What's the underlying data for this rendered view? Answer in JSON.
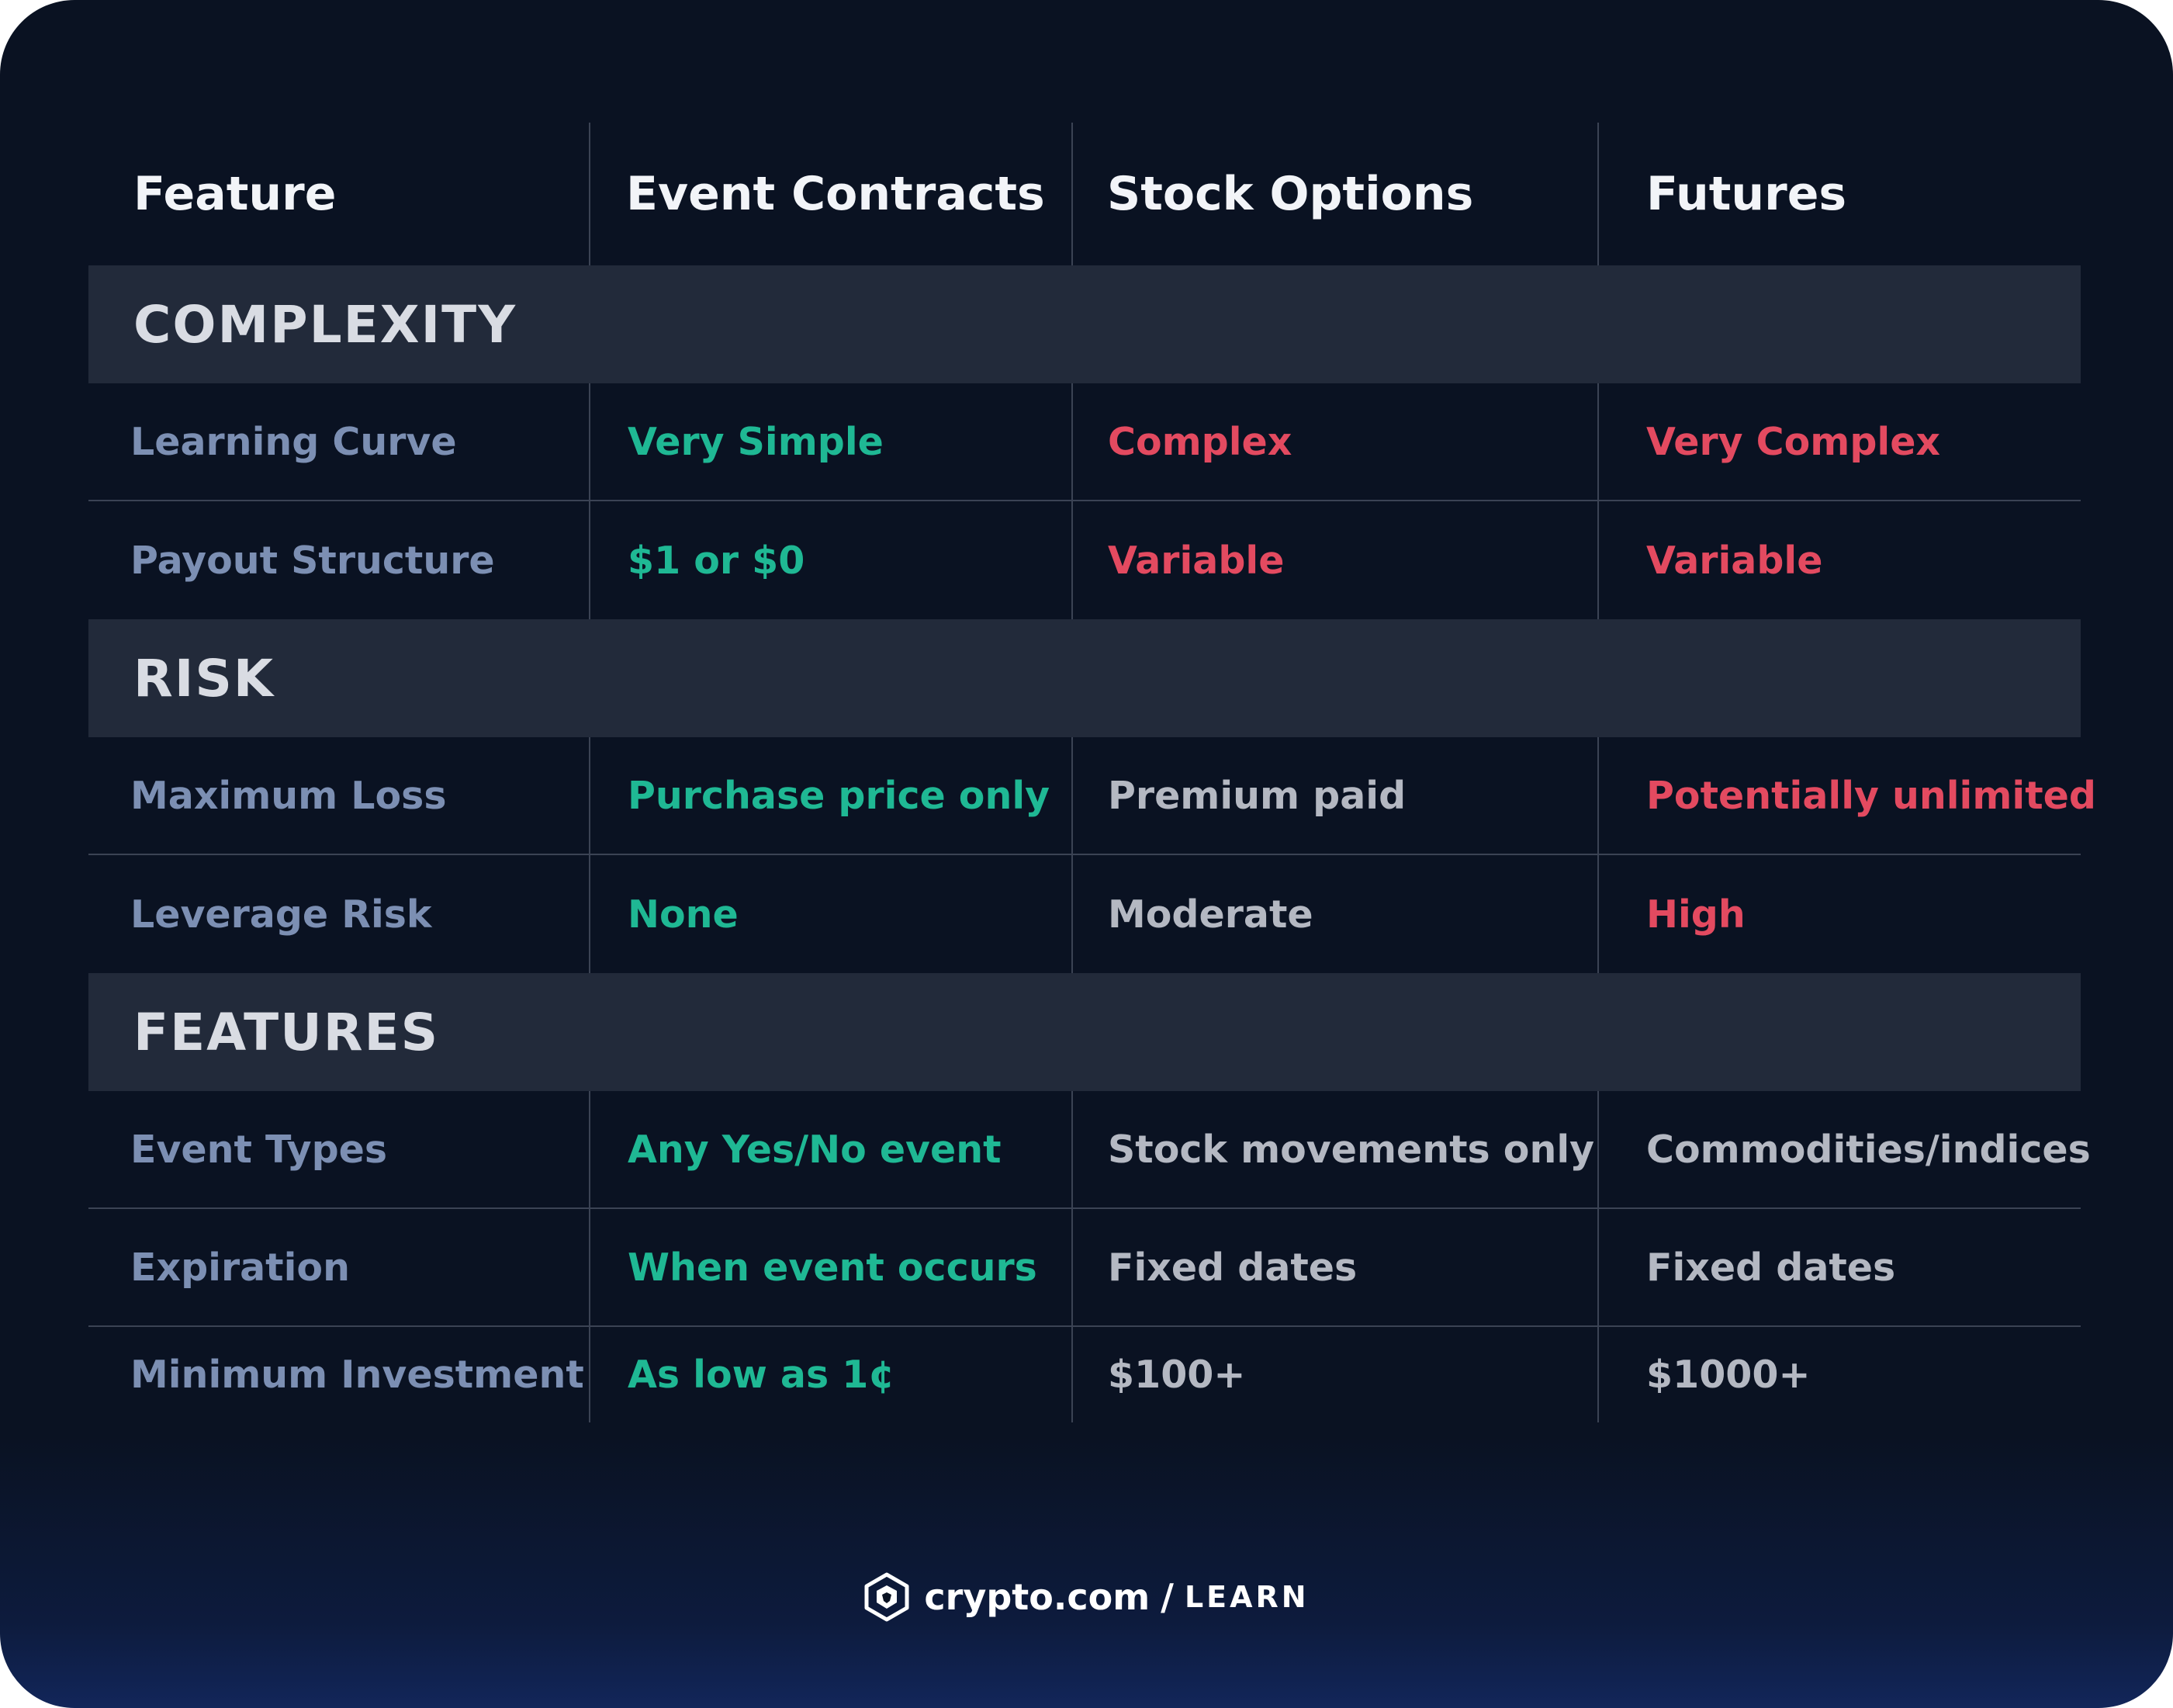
{
  "header": {
    "columns": [
      "Feature",
      "Event Contracts",
      "Stock Options",
      "Futures"
    ]
  },
  "sections": [
    {
      "title": "COMPLEXITY",
      "rows": [
        {
          "feature": "Learning Curve",
          "event_contracts": "Very Simple",
          "stock_options": "Complex",
          "futures": "Very Complex"
        },
        {
          "feature": "Payout Structure",
          "event_contracts": "$1 or $0",
          "stock_options": "Variable",
          "futures": "Variable"
        }
      ]
    },
    {
      "title": "RISK",
      "rows": [
        {
          "feature": "Maximum Loss",
          "event_contracts": "Purchase price only",
          "stock_options": "Premium paid",
          "futures": "Potentially unlimited"
        },
        {
          "feature": "Leverage Risk",
          "event_contracts": "None",
          "stock_options": "Moderate",
          "futures": "High"
        }
      ]
    },
    {
      "title": "FEATURES",
      "rows": [
        {
          "feature": "Event Types",
          "event_contracts": "Any Yes/No event",
          "stock_options": "Stock movements only",
          "futures": "Commodities/indices"
        },
        {
          "feature": "Expiration",
          "event_contracts": "When event occurs",
          "stock_options": "Fixed dates",
          "futures": "Fixed dates"
        },
        {
          "feature": "Minimum Investment",
          "event_contracts": "As low as 1¢",
          "stock_options": "$100+",
          "futures": "$1000+"
        }
      ]
    }
  ],
  "colors": {
    "favorable": "#1fb894",
    "unfavorable": "#e34a60",
    "neutral": "#b4b8c2",
    "feature_label": "#7c8fb3"
  },
  "footer": {
    "brand": "crypto.com",
    "separator": "/",
    "section": "LEARN",
    "logo_icon": "crypto-com-lion-shield-icon"
  }
}
